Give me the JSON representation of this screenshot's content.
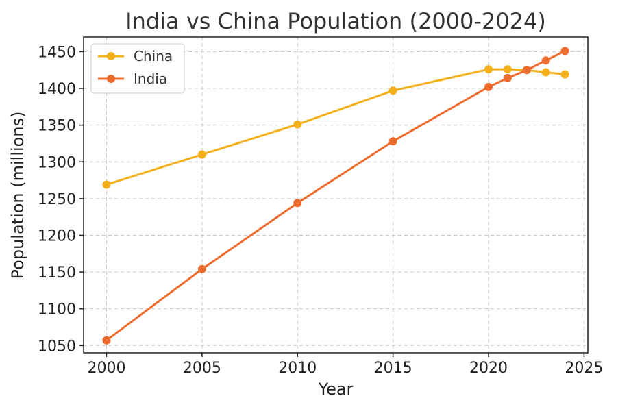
{
  "chart_data": {
    "type": "line",
    "title": "India vs China Population (2000-2024)",
    "xlabel": "Year",
    "ylabel": "Population (millions)",
    "xlim": [
      1998.8,
      2025.2
    ],
    "ylim": [
      1040,
      1470
    ],
    "x_ticks": [
      2000,
      2005,
      2010,
      2015,
      2020,
      2025
    ],
    "y_ticks": [
      1050,
      1100,
      1150,
      1200,
      1250,
      1300,
      1350,
      1400,
      1450
    ],
    "grid": true,
    "legend_position": "top-left",
    "x": [
      2000,
      2005,
      2010,
      2015,
      2020,
      2021,
      2022,
      2023,
      2024
    ],
    "series": [
      {
        "name": "China",
        "color": "#f4b01b",
        "values": [
          1269,
          1310,
          1351,
          1397,
          1426,
          1426,
          1425,
          1422,
          1419
        ]
      },
      {
        "name": "India",
        "color": "#ec6b2d",
        "values": [
          1057,
          1154,
          1244,
          1328,
          1402,
          1414,
          1425,
          1438,
          1451
        ]
      }
    ]
  }
}
